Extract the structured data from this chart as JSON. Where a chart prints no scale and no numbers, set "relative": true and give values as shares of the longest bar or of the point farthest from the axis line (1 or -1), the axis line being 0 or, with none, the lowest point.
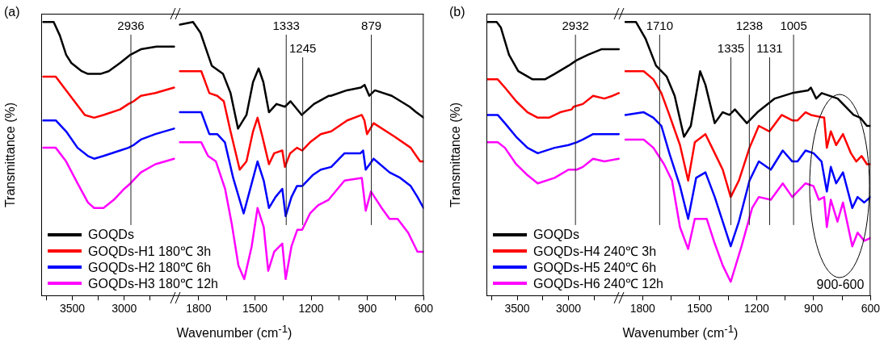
{
  "chart_data": [
    {
      "type": "line",
      "title": "(a)",
      "xlabel": "Wavenumber (cm$^{-1}$)",
      "ylabel": "Transmittance (%)",
      "relative": true,
      "legend": "bottom",
      "tick_labels": "x",
      "xlim": [
        3800,
        2500
      ],
      "xticks": [
        {
          "value": 3750,
          "label": null
        },
        3500,
        {
          "value": 3250,
          "label": null
        },
        3000,
        {
          "value": 2750,
          "label": null
        }
      ],
      "ref_lines": [
        {
          "axis": "x",
          "value": 2936,
          "label": "2936"
        }
      ],
      "series": [
        {
          "name": "GOQDs",
          "color": "#000000",
          "x": [
            3780,
            3680,
            3620,
            3560,
            3510,
            3410,
            3350,
            3230,
            3150,
            3040,
            2940,
            2840,
            2690,
            2520
          ],
          "values": [
            1.0,
            1.0,
            0.95,
            0.88,
            0.85,
            0.82,
            0.81,
            0.81,
            0.82,
            0.85,
            0.88,
            0.9,
            0.91,
            0.91
          ]
        },
        {
          "name": "GOQDs-H1 180℃ 3h",
          "color": "#ff0000",
          "x": [
            3780,
            3660,
            3560,
            3480,
            3380,
            3290,
            3200,
            3040,
            2960,
            2910,
            2840,
            2700,
            2520
          ],
          "values": [
            0.8,
            0.8,
            0.75,
            0.71,
            0.66,
            0.65,
            0.66,
            0.68,
            0.7,
            0.71,
            0.73,
            0.74,
            0.76
          ]
        },
        {
          "name": "GOQDs-H2 180℃ 6h",
          "color": "#0000ff",
          "x": [
            3780,
            3660,
            3560,
            3450,
            3350,
            3290,
            3200,
            3040,
            2960,
            2910,
            2840,
            2700,
            2520
          ],
          "values": [
            0.64,
            0.64,
            0.6,
            0.54,
            0.51,
            0.5,
            0.51,
            0.53,
            0.54,
            0.55,
            0.57,
            0.59,
            0.61
          ]
        },
        {
          "name": "GOQDs-H3 180℃ 12h",
          "color": "#ff00ff",
          "x": [
            3780,
            3660,
            3560,
            3450,
            3350,
            3290,
            3200,
            3100,
            3000,
            2940,
            2840,
            2700,
            2520
          ],
          "values": [
            0.54,
            0.54,
            0.49,
            0.41,
            0.34,
            0.32,
            0.32,
            0.35,
            0.39,
            0.41,
            0.45,
            0.48,
            0.5
          ]
        }
      ]
    },
    {
      "type": "line",
      "relative": true,
      "tick_labels": "x",
      "xlim": [
        1920,
        600
      ],
      "xticks": [
        1800,
        {
          "value": 1650,
          "label": null
        },
        1500,
        {
          "value": 1350,
          "label": null
        },
        1200,
        {
          "value": 1050,
          "label": null
        },
        900,
        {
          "value": 750,
          "label": null
        },
        600
      ],
      "ref_lines": [
        {
          "axis": "x",
          "value": 1333,
          "label": "1333"
        },
        {
          "axis": "x",
          "value": 1245,
          "label": "1245"
        },
        {
          "axis": "x",
          "value": 879,
          "label": "879"
        }
      ],
      "series": [
        {
          "color": "#000000",
          "x": [
            1900,
            1830,
            1790,
            1730,
            1670,
            1630,
            1590,
            1545,
            1510,
            1480,
            1455,
            1425,
            1385,
            1340,
            1310,
            1250,
            1185,
            1105,
            1095,
            1010,
            935,
            915,
            890,
            860,
            770,
            675,
            640,
            600
          ],
          "values": [
            0.99,
            1.0,
            0.96,
            0.84,
            0.81,
            0.74,
            0.61,
            0.66,
            0.78,
            0.83,
            0.78,
            0.67,
            0.7,
            0.69,
            0.71,
            0.66,
            0.7,
            0.73,
            0.73,
            0.75,
            0.76,
            0.77,
            0.73,
            0.75,
            0.73,
            0.69,
            0.67,
            0.65
          ]
        },
        {
          "color": "#ff0000",
          "x": [
            1900,
            1786,
            1743,
            1701,
            1666,
            1630,
            1581,
            1545,
            1510,
            1486,
            1460,
            1425,
            1397,
            1354,
            1340,
            1312,
            1276,
            1248,
            1206,
            1149,
            1093,
            1008,
            930,
            916,
            902,
            867,
            754,
            669,
            619,
            601
          ],
          "values": [
            0.82,
            0.82,
            0.74,
            0.73,
            0.71,
            0.6,
            0.46,
            0.49,
            0.6,
            0.65,
            0.58,
            0.48,
            0.52,
            0.53,
            0.47,
            0.52,
            0.54,
            0.53,
            0.56,
            0.59,
            0.6,
            0.64,
            0.66,
            0.64,
            0.59,
            0.63,
            0.58,
            0.54,
            0.49,
            0.49
          ]
        },
        {
          "color": "#0000ff",
          "x": [
            1900,
            1786,
            1743,
            1701,
            1660,
            1616,
            1560,
            1517,
            1486,
            1453,
            1425,
            1390,
            1354,
            1336,
            1305,
            1276,
            1248,
            1192,
            1149,
            1093,
            1022,
            937,
            923,
            909,
            867,
            782,
            725,
            669,
            633,
            601
          ],
          "values": [
            0.67,
            0.67,
            0.59,
            0.59,
            0.56,
            0.43,
            0.3,
            0.41,
            0.49,
            0.42,
            0.32,
            0.36,
            0.39,
            0.29,
            0.36,
            0.4,
            0.4,
            0.44,
            0.46,
            0.47,
            0.52,
            0.52,
            0.53,
            0.46,
            0.5,
            0.45,
            0.43,
            0.4,
            0.36,
            0.32
          ]
        },
        {
          "color": "#ff00ff",
          "x": [
            1900,
            1786,
            1750,
            1708,
            1659,
            1623,
            1588,
            1557,
            1517,
            1486,
            1453,
            1429,
            1397,
            1354,
            1336,
            1305,
            1274,
            1248,
            1206,
            1163,
            1107,
            1022,
            930,
            909,
            881,
            824,
            782,
            739,
            683,
            633,
            601
          ],
          "values": [
            0.56,
            0.56,
            0.51,
            0.49,
            0.39,
            0.26,
            0.11,
            0.06,
            0.18,
            0.32,
            0.25,
            0.09,
            0.16,
            0.19,
            0.06,
            0.18,
            0.24,
            0.24,
            0.3,
            0.33,
            0.35,
            0.42,
            0.43,
            0.31,
            0.38,
            0.32,
            0.28,
            0.28,
            0.23,
            0.16,
            0.16
          ]
        }
      ]
    },
    {
      "type": "line",
      "title": "(b)",
      "xlabel": "Wavenumber (cm$^{-1}$)",
      "ylabel": "Transmittance (%)",
      "relative": true,
      "legend": "bottom",
      "tick_labels": "x",
      "xlim": [
        3800,
        2500
      ],
      "xticks": [
        {
          "value": 3750,
          "label": null
        },
        3500,
        {
          "value": 3250,
          "label": null
        },
        3000,
        {
          "value": 2750,
          "label": null
        }
      ],
      "ref_lines": [
        {
          "axis": "x",
          "value": 2932,
          "label": "2932"
        }
      ],
      "series": [
        {
          "name": "GOQDs",
          "color": "#000000",
          "x": [
            3790,
            3700,
            3660,
            3580,
            3490,
            3350,
            3230,
            3135,
            3000,
            2920,
            2810,
            2680,
            2510
          ],
          "values": [
            1.0,
            1.0,
            0.98,
            0.88,
            0.82,
            0.79,
            0.79,
            0.81,
            0.84,
            0.86,
            0.88,
            0.9,
            0.9
          ]
        },
        {
          "name": "GOQDs-H4 240℃ 3h",
          "color": "#ff0000",
          "x": [
            3790,
            3690,
            3620,
            3510,
            3400,
            3300,
            3190,
            3080,
            2970,
            2950,
            2860,
            2760,
            2650,
            2570,
            2510
          ],
          "values": [
            0.79,
            0.79,
            0.76,
            0.71,
            0.67,
            0.65,
            0.65,
            0.67,
            0.68,
            0.69,
            0.7,
            0.73,
            0.72,
            0.73,
            0.74
          ]
        },
        {
          "name": "GOQDs-H5 240℃ 6h",
          "color": "#0000ff",
          "x": [
            3790,
            3690,
            3620,
            3510,
            3400,
            3300,
            3135,
            3000,
            2920,
            2860,
            2760,
            2650,
            2510
          ],
          "values": [
            0.66,
            0.66,
            0.63,
            0.58,
            0.54,
            0.52,
            0.54,
            0.55,
            0.56,
            0.57,
            0.59,
            0.59,
            0.59
          ]
        },
        {
          "name": "GOQDs-H6 240℃ 12h",
          "color": "#ff00ff",
          "x": [
            3790,
            3690,
            3620,
            3510,
            3400,
            3300,
            3135,
            3000,
            2920,
            2860,
            2760,
            2650,
            2510
          ],
          "values": [
            0.56,
            0.56,
            0.54,
            0.48,
            0.44,
            0.41,
            0.43,
            0.46,
            0.46,
            0.47,
            0.5,
            0.49,
            0.5
          ]
        }
      ]
    },
    {
      "type": "line",
      "relative": true,
      "tick_labels": "x",
      "xlim": [
        1920,
        600
      ],
      "xticks": [
        1800,
        {
          "value": 1650,
          "label": null
        },
        1500,
        {
          "value": 1350,
          "label": null
        },
        1200,
        {
          "value": 1050,
          "label": null
        },
        900,
        {
          "value": 750,
          "label": null
        },
        600
      ],
      "ref_lines": [
        {
          "axis": "x",
          "value": 1710,
          "label": "1710"
        },
        {
          "axis": "x",
          "value": 1335,
          "label": "1335"
        },
        {
          "axis": "x",
          "value": 1238,
          "label": "1238"
        },
        {
          "axis": "x",
          "value": 1131,
          "label": "1131"
        },
        {
          "axis": "x",
          "value": 1005,
          "label": "1005"
        }
      ],
      "annotations": [
        "900-600"
      ],
      "series": [
        {
          "color": "#000000",
          "x": [
            1890,
            1835,
            1785,
            1729,
            1673,
            1631,
            1582,
            1546,
            1497,
            1469,
            1420,
            1378,
            1343,
            1314,
            1251,
            1195,
            1104,
            1012,
            928,
            914,
            886,
            857,
            773,
            689,
            654,
            619,
            600
          ],
          "values": [
            1.0,
            1.0,
            0.94,
            0.84,
            0.8,
            0.73,
            0.58,
            0.62,
            0.82,
            0.77,
            0.63,
            0.67,
            0.66,
            0.68,
            0.63,
            0.67,
            0.72,
            0.74,
            0.75,
            0.76,
            0.72,
            0.74,
            0.72,
            0.66,
            0.65,
            0.62,
            0.62
          ]
        },
        {
          "color": "#ff0000",
          "x": [
            1890,
            1794,
            1743,
            1701,
            1659,
            1603,
            1560,
            1525,
            1469,
            1420,
            1378,
            1336,
            1293,
            1237,
            1188,
            1132,
            1068,
            1012,
            984,
            942,
            914,
            844,
            830,
            809,
            781,
            745,
            703,
            675,
            647,
            619,
            600
          ],
          "values": [
            0.82,
            0.82,
            0.79,
            0.74,
            0.66,
            0.55,
            0.42,
            0.56,
            0.59,
            0.52,
            0.46,
            0.36,
            0.42,
            0.54,
            0.62,
            0.6,
            0.66,
            0.64,
            0.64,
            0.67,
            0.66,
            0.65,
            0.54,
            0.6,
            0.55,
            0.59,
            0.52,
            0.49,
            0.51,
            0.48,
            0.48
          ]
        },
        {
          "color": "#0000ff",
          "x": [
            1890,
            1794,
            1743,
            1701,
            1659,
            1603,
            1560,
            1518,
            1469,
            1420,
            1378,
            1336,
            1293,
            1237,
            1188,
            1125,
            1062,
            1012,
            984,
            942,
            900,
            858,
            830,
            809,
            781,
            745,
            696,
            668,
            633,
            600
          ],
          "values": [
            0.66,
            0.67,
            0.65,
            0.62,
            0.52,
            0.4,
            0.28,
            0.43,
            0.45,
            0.36,
            0.27,
            0.18,
            0.27,
            0.42,
            0.49,
            0.46,
            0.53,
            0.49,
            0.49,
            0.53,
            0.52,
            0.49,
            0.38,
            0.47,
            0.41,
            0.45,
            0.32,
            0.36,
            0.34,
            0.36
          ]
        },
        {
          "color": "#ff00ff",
          "x": [
            1890,
            1794,
            1743,
            1687,
            1645,
            1603,
            1560,
            1525,
            1462,
            1420,
            1378,
            1336,
            1279,
            1223,
            1188,
            1125,
            1062,
            1012,
            942,
            900,
            872,
            844,
            830,
            809,
            774,
            745,
            696,
            668,
            633,
            600
          ],
          "values": [
            0.57,
            0.57,
            0.54,
            0.48,
            0.42,
            0.25,
            0.17,
            0.28,
            0.28,
            0.19,
            0.11,
            0.05,
            0.18,
            0.32,
            0.36,
            0.35,
            0.41,
            0.36,
            0.41,
            0.4,
            0.35,
            0.36,
            0.25,
            0.35,
            0.27,
            0.34,
            0.18,
            0.23,
            0.2,
            0.21
          ]
        }
      ]
    }
  ]
}
